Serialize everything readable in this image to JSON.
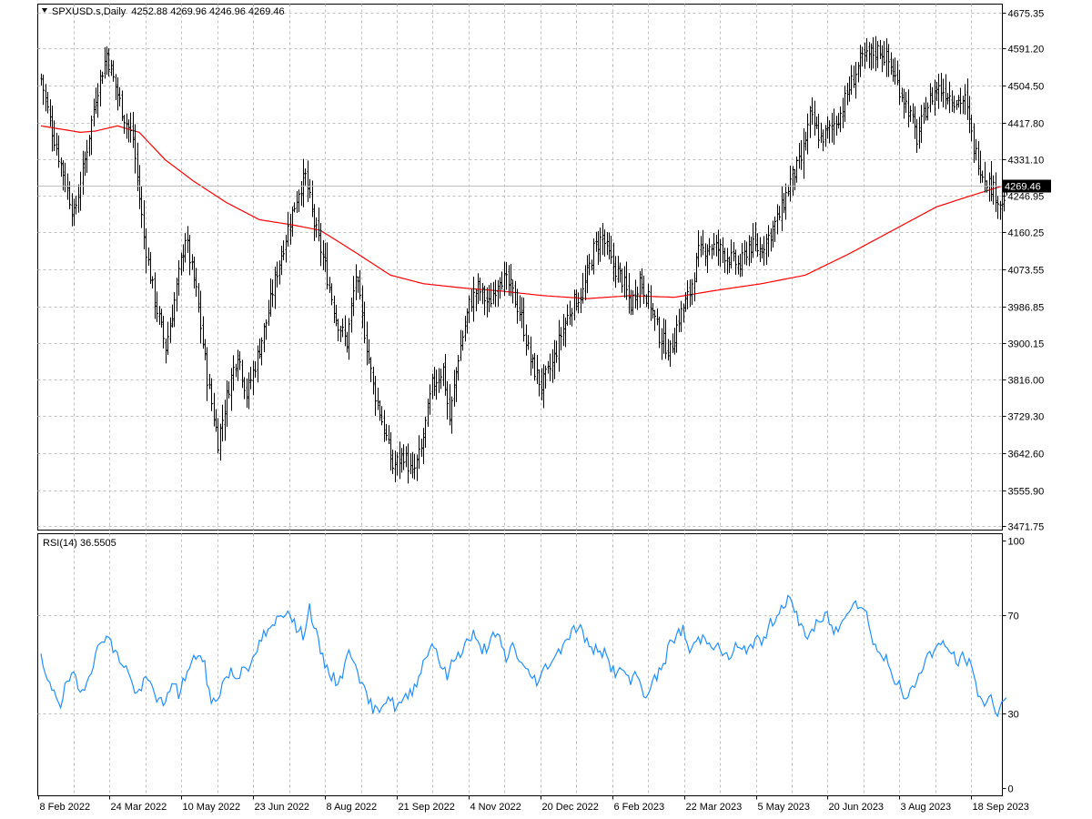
{
  "colors": {
    "background": "#ffffff",
    "bars": "#000000",
    "moving_average": "#ff0000",
    "rsi_line": "#1e90ff",
    "grid": "#c0c0c0",
    "current_price_tag_bg": "#000000",
    "current_price_tag_fg": "#ffffff",
    "current_price_line": "#c0c0c0"
  },
  "icons": {
    "menu": "triangle-down-icon"
  },
  "header": {
    "symbol_line": "SPXUSD.s,Daily  4252.88 4269.96 4246.96 4269.46"
  },
  "rsi_header": {
    "label": "RSI(14) 36.5505"
  },
  "current_price_tag": "4269.46",
  "chart_data": [
    {
      "type": "bar",
      "title": "SPXUSD.s,Daily",
      "grid": true,
      "ylim": [
        3471.75,
        4675.35
      ],
      "ytick_labels": [
        "4675.35",
        "4591.20",
        "4504.50",
        "4417.80",
        "4331.10",
        "4246.95",
        "4160.25",
        "4073.55",
        "3986.85",
        "3900.15",
        "3816.00",
        "3729.30",
        "3642.60",
        "3555.90",
        "3471.75"
      ],
      "xtick_labels": [
        "8 Feb 2022",
        "24 Mar 2022",
        "10 May 2022",
        "23 Jun 2022",
        "8 Aug 2022",
        "21 Sep 2022",
        "4 Nov 2022",
        "20 Dec 2022",
        "6 Feb 2023",
        "22 Mar 2023",
        "5 May 2023",
        "20 Jun 2023",
        "3 Aug 2023",
        "18 Sep 2023"
      ],
      "last_bar": {
        "open": 4252.88,
        "high": 4269.96,
        "low": 4246.96,
        "close": 4269.46
      },
      "close_anchors": [
        [
          0,
          4520
        ],
        [
          5,
          4400
        ],
        [
          10,
          4300
        ],
        [
          15,
          4200
        ],
        [
          20,
          4330
        ],
        [
          25,
          4480
        ],
        [
          30,
          4580
        ],
        [
          33,
          4520
        ],
        [
          38,
          4430
        ],
        [
          42,
          4380
        ],
        [
          47,
          4150
        ],
        [
          52,
          4000
        ],
        [
          57,
          3890
        ],
        [
          61,
          4000
        ],
        [
          66,
          4150
        ],
        [
          71,
          4020
        ],
        [
          76,
          3820
        ],
        [
          81,
          3670
        ],
        [
          86,
          3800
        ],
        [
          90,
          3880
        ],
        [
          94,
          3780
        ],
        [
          98,
          3850
        ],
        [
          103,
          3950
        ],
        [
          108,
          4070
        ],
        [
          113,
          4170
        ],
        [
          118,
          4260
        ],
        [
          121,
          4290
        ],
        [
          125,
          4180
        ],
        [
          130,
          4080
        ],
        [
          135,
          3960
        ],
        [
          140,
          3900
        ],
        [
          144,
          4060
        ],
        [
          147,
          3960
        ],
        [
          152,
          3800
        ],
        [
          157,
          3700
        ],
        [
          161,
          3610
        ],
        [
          166,
          3640
        ],
        [
          170,
          3590
        ],
        [
          174,
          3650
        ],
        [
          179,
          3800
        ],
        [
          184,
          3840
        ],
        [
          187,
          3720
        ],
        [
          191,
          3870
        ],
        [
          196,
          3990
        ],
        [
          200,
          4030
        ],
        [
          205,
          3990
        ],
        [
          210,
          4060
        ],
        [
          215,
          4030
        ],
        [
          220,
          3960
        ],
        [
          224,
          3860
        ],
        [
          229,
          3800
        ],
        [
          234,
          3850
        ],
        [
          238,
          3920
        ],
        [
          243,
          3990
        ],
        [
          248,
          4020
        ],
        [
          253,
          4120
        ],
        [
          257,
          4150
        ],
        [
          261,
          4090
        ],
        [
          266,
          4050
        ],
        [
          270,
          3990
        ],
        [
          274,
          4050
        ],
        [
          279,
          3990
        ],
        [
          283,
          3920
        ],
        [
          288,
          3880
        ],
        [
          292,
          3960
        ],
        [
          297,
          4020
        ],
        [
          301,
          4110
        ],
        [
          306,
          4130
        ],
        [
          311,
          4120
        ],
        [
          315,
          4100
        ],
        [
          320,
          4080
        ],
        [
          324,
          4130
        ],
        [
          329,
          4120
        ],
        [
          333,
          4150
        ],
        [
          338,
          4200
        ],
        [
          343,
          4280
        ],
        [
          348,
          4330
        ],
        [
          352,
          4430
        ],
        [
          357,
          4380
        ],
        [
          361,
          4400
        ],
        [
          366,
          4440
        ],
        [
          370,
          4500
        ],
        [
          375,
          4560
        ],
        [
          379,
          4575
        ],
        [
          384,
          4590
        ],
        [
          388,
          4560
        ],
        [
          392,
          4510
        ],
        [
          397,
          4450
        ],
        [
          401,
          4380
        ],
        [
          405,
          4450
        ],
        [
          410,
          4500
        ],
        [
          414,
          4490
        ],
        [
          419,
          4470
        ],
        [
          423,
          4470
        ],
        [
          427,
          4360
        ],
        [
          431,
          4300
        ],
        [
          436,
          4260
        ],
        [
          440,
          4220
        ],
        [
          442,
          4269.46
        ]
      ],
      "moving_average": {
        "period": 200,
        "anchors": [
          [
            0,
            4410
          ],
          [
            18,
            4395
          ],
          [
            25,
            4398
          ],
          [
            35,
            4410
          ],
          [
            45,
            4395
          ],
          [
            57,
            4330
          ],
          [
            70,
            4280
          ],
          [
            85,
            4230
          ],
          [
            100,
            4190
          ],
          [
            115,
            4178
          ],
          [
            128,
            4165
          ],
          [
            145,
            4110
          ],
          [
            160,
            4060
          ],
          [
            175,
            4040
          ],
          [
            193,
            4030
          ],
          [
            210,
            4023
          ],
          [
            230,
            4012
          ],
          [
            250,
            4005
          ],
          [
            270,
            4012
          ],
          [
            290,
            4008
          ],
          [
            310,
            4025
          ],
          [
            330,
            4040
          ],
          [
            350,
            4060
          ],
          [
            370,
            4110
          ],
          [
            390,
            4165
          ],
          [
            410,
            4220
          ],
          [
            425,
            4245
          ],
          [
            442,
            4272
          ]
        ]
      }
    },
    {
      "type": "line",
      "title": "RSI(14) 36.5505",
      "grid": true,
      "ylim": [
        0,
        100
      ],
      "ytick_labels": [
        "100",
        "70",
        "30",
        "0"
      ],
      "series": [
        {
          "name": "RSI(14)",
          "last_value": 36.5505,
          "anchors": [
            [
              0,
              52
            ],
            [
              3,
              42
            ],
            [
              6,
              40
            ],
            [
              9,
              34
            ],
            [
              12,
              43
            ],
            [
              15,
              45
            ],
            [
              18,
              38
            ],
            [
              21,
              44
            ],
            [
              24,
              51
            ],
            [
              27,
              58
            ],
            [
              30,
              63
            ],
            [
              33,
              56
            ],
            [
              36,
              52
            ],
            [
              39,
              49
            ],
            [
              42,
              41
            ],
            [
              45,
              38
            ],
            [
              48,
              44
            ],
            [
              51,
              41
            ],
            [
              54,
              35
            ],
            [
              57,
              33
            ],
            [
              60,
              44
            ],
            [
              63,
              38
            ],
            [
              66,
              45
            ],
            [
              69,
              50
            ],
            [
              72,
              55
            ],
            [
              75,
              49
            ],
            [
              78,
              34
            ],
            [
              81,
              37
            ],
            [
              84,
              44
            ],
            [
              87,
              47
            ],
            [
              90,
              44
            ],
            [
              93,
              51
            ],
            [
              96,
              48
            ],
            [
              99,
              56
            ],
            [
              102,
              62
            ],
            [
              105,
              63
            ],
            [
              108,
              68
            ],
            [
              111,
              71
            ],
            [
              114,
              72
            ],
            [
              117,
              64
            ],
            [
              120,
              62
            ],
            [
              123,
              73
            ],
            [
              126,
              62
            ],
            [
              129,
              52
            ],
            [
              132,
              47
            ],
            [
              135,
              43
            ],
            [
              138,
              46
            ],
            [
              141,
              55
            ],
            [
              144,
              52
            ],
            [
              147,
              41
            ],
            [
              150,
              35
            ],
            [
              153,
              31
            ],
            [
              156,
              34
            ],
            [
              159,
              37
            ],
            [
              162,
              33
            ],
            [
              165,
              34
            ],
            [
              168,
              37
            ],
            [
              171,
              41
            ],
            [
              174,
              48
            ],
            [
              177,
              55
            ],
            [
              180,
              59
            ],
            [
              183,
              50
            ],
            [
              186,
              45
            ],
            [
              189,
              52
            ],
            [
              192,
              55
            ],
            [
              195,
              59
            ],
            [
              198,
              62
            ],
            [
              201,
              56
            ],
            [
              204,
              57
            ],
            [
              207,
              61
            ],
            [
              210,
              60
            ],
            [
              213,
              52
            ],
            [
              216,
              58
            ],
            [
              219,
              52
            ],
            [
              222,
              47
            ],
            [
              225,
              45
            ],
            [
              228,
              43
            ],
            [
              231,
              49
            ],
            [
              234,
              52
            ],
            [
              237,
              55
            ],
            [
              240,
              60
            ],
            [
              243,
              63
            ],
            [
              246,
              66
            ],
            [
              249,
              61
            ],
            [
              252,
              55
            ],
            [
              255,
              57
            ],
            [
              258,
              54
            ],
            [
              261,
              49
            ],
            [
              264,
              46
            ],
            [
              267,
              48
            ],
            [
              270,
              42
            ],
            [
              273,
              46
            ],
            [
              276,
              37
            ],
            [
              279,
              41
            ],
            [
              282,
              45
            ],
            [
              285,
              50
            ],
            [
              288,
              58
            ],
            [
              291,
              62
            ],
            [
              294,
              64
            ],
            [
              297,
              55
            ],
            [
              300,
              59
            ],
            [
              303,
              61
            ],
            [
              306,
              60
            ],
            [
              309,
              57
            ],
            [
              312,
              55
            ],
            [
              315,
              52
            ],
            [
              318,
              57
            ],
            [
              321,
              55
            ],
            [
              324,
              57
            ],
            [
              327,
              60
            ],
            [
              330,
              58
            ],
            [
              333,
              65
            ],
            [
              336,
              69
            ],
            [
              339,
              73
            ],
            [
              342,
              77
            ],
            [
              345,
              71
            ],
            [
              348,
              66
            ],
            [
              351,
              61
            ],
            [
              354,
              65
            ],
            [
              357,
              67
            ],
            [
              360,
              70
            ],
            [
              363,
              63
            ],
            [
              366,
              65
            ],
            [
              369,
              72
            ],
            [
              372,
              76
            ],
            [
              375,
              74
            ],
            [
              378,
              70
            ],
            [
              381,
              60
            ],
            [
              384,
              54
            ],
            [
              387,
              52
            ],
            [
              390,
              46
            ],
            [
              393,
              41
            ],
            [
              396,
              35
            ],
            [
              399,
              40
            ],
            [
              402,
              46
            ],
            [
              405,
              52
            ],
            [
              408,
              55
            ],
            [
              411,
              58
            ],
            [
              414,
              57
            ],
            [
              417,
              55
            ],
            [
              420,
              50
            ],
            [
              423,
              54
            ],
            [
              426,
              48
            ],
            [
              429,
              39
            ],
            [
              432,
              34
            ],
            [
              435,
              36
            ],
            [
              438,
              31
            ],
            [
              440,
              34
            ],
            [
              442,
              36.5505
            ]
          ]
        }
      ]
    }
  ]
}
